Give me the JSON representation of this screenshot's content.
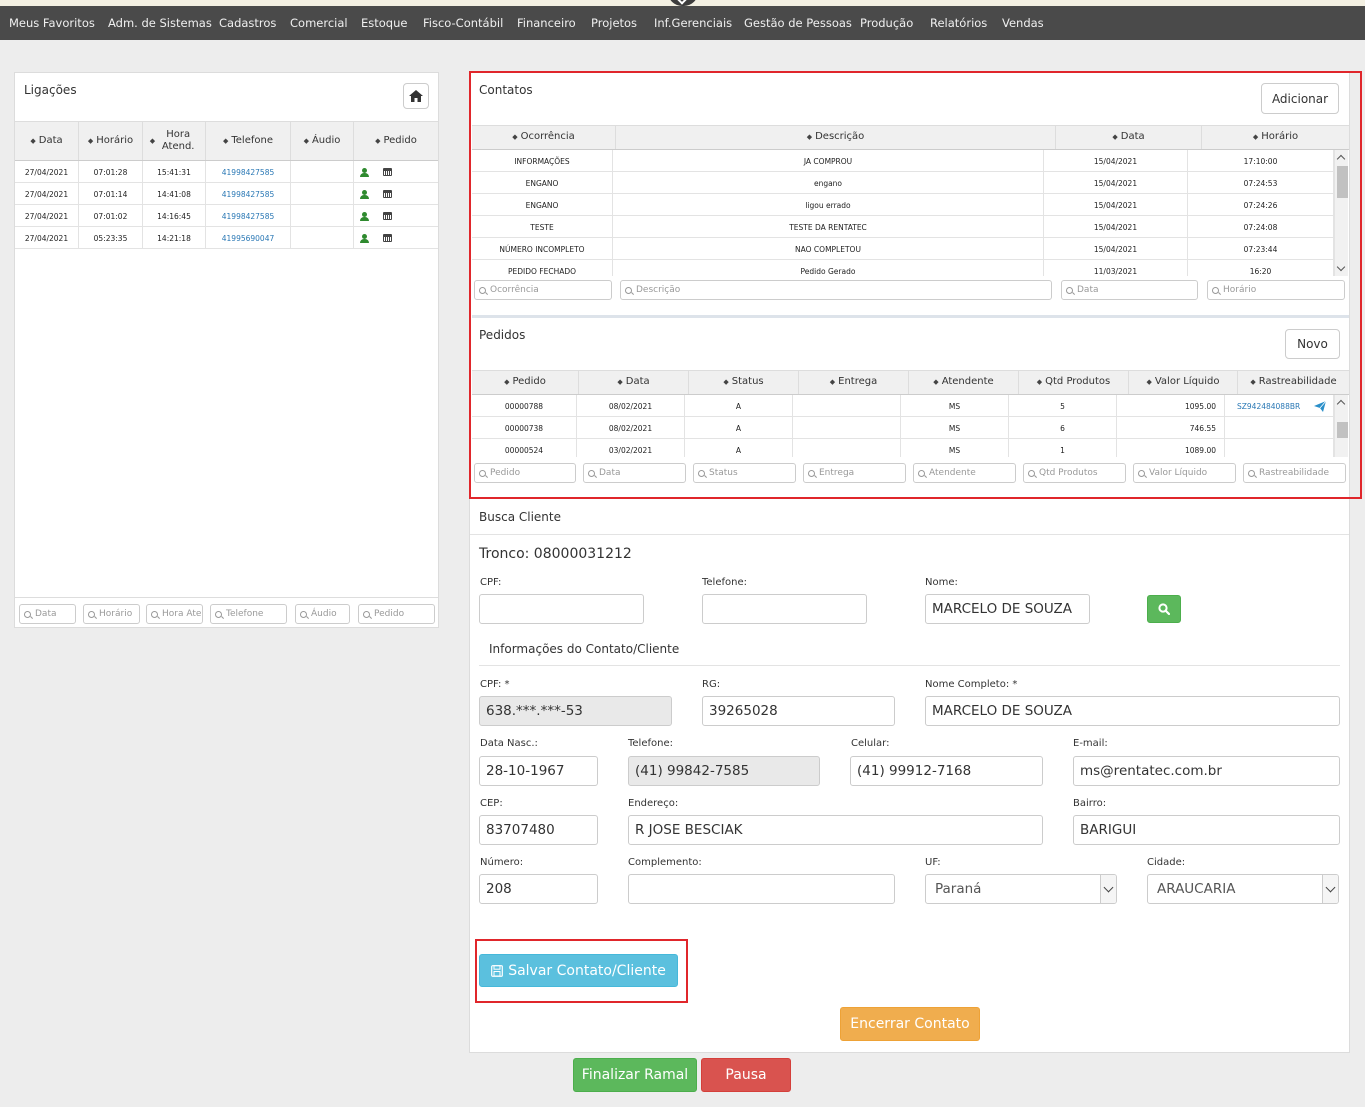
{
  "nav": [
    "Meus Favoritos",
    "Adm. de Sistemas",
    "Cadastros",
    "Comercial",
    "Estoque",
    "Fisco-Contábil",
    "Financeiro",
    "Projetos",
    "Inf.Gerenciais",
    "Gestão de Pessoas",
    "Produção",
    "Relatórios",
    "Vendas"
  ],
  "ligacoes": {
    "title": "Ligações",
    "columns": [
      "Data",
      "Horário",
      "Hora Atend.",
      "Telefone",
      "Áudio",
      "Pedido"
    ],
    "rows": [
      {
        "data": "27/04/2021",
        "horario": "07:01:28",
        "hora_atend": "15:41:31",
        "telefone": "41998427585"
      },
      {
        "data": "27/04/2021",
        "horario": "07:01:14",
        "hora_atend": "14:41:08",
        "telefone": "41998427585"
      },
      {
        "data": "27/04/2021",
        "horario": "07:01:02",
        "hora_atend": "14:16:45",
        "telefone": "41998427585"
      },
      {
        "data": "27/04/2021",
        "horario": "05:23:35",
        "hora_atend": "14:21:18",
        "telefone": "41995690047"
      }
    ],
    "filters": [
      "Data",
      "Horário",
      "Hora Atend",
      "Telefone",
      "Áudio",
      "Pedido"
    ]
  },
  "contatos": {
    "title": "Contatos",
    "add_label": "Adicionar",
    "columns": [
      "Ocorrência",
      "Descrição",
      "Data",
      "Horário"
    ],
    "rows": [
      {
        "ocorrencia": "INFORMAÇÕES",
        "descricao": "JA COMPROU",
        "data": "15/04/2021",
        "horario": "17:10:00"
      },
      {
        "ocorrencia": "ENGANO",
        "descricao": "engano",
        "data": "15/04/2021",
        "horario": "07:24:53"
      },
      {
        "ocorrencia": "ENGANO",
        "descricao": "ligou errado",
        "data": "15/04/2021",
        "horario": "07:24:26"
      },
      {
        "ocorrencia": "TESTE",
        "descricao": "TESTE DA RENTATEC",
        "data": "15/04/2021",
        "horario": "07:24:08"
      },
      {
        "ocorrencia": "NÚMERO INCOMPLETO",
        "descricao": "NAO COMPLETOU",
        "data": "15/04/2021",
        "horario": "07:23:44"
      },
      {
        "ocorrencia": "PEDIDO FECHADO",
        "descricao": "Pedido Gerado",
        "data": "11/03/2021",
        "horario": "16:20"
      }
    ],
    "filters": [
      "Ocorrência",
      "Descrição",
      "Data",
      "Horário"
    ]
  },
  "pedidos": {
    "title": "Pedidos",
    "new_label": "Novo",
    "columns": [
      "Pedido",
      "Data",
      "Status",
      "Entrega",
      "Atendente",
      "Qtd Produtos",
      "Valor Líquido",
      "Rastreabilidade"
    ],
    "rows": [
      {
        "pedido": "00000788",
        "data": "08/02/2021",
        "status": "A",
        "entrega": "",
        "atendente": "MS",
        "qtd": "5",
        "valor": "1095.00",
        "rastreio": "SZ942484088BR"
      },
      {
        "pedido": "00000738",
        "data": "08/02/2021",
        "status": "A",
        "entrega": "",
        "atendente": "MS",
        "qtd": "6",
        "valor": "746.55",
        "rastreio": ""
      },
      {
        "pedido": "00000524",
        "data": "03/02/2021",
        "status": "A",
        "entrega": "",
        "atendente": "MS",
        "qtd": "1",
        "valor": "1089.00",
        "rastreio": ""
      }
    ],
    "filters": [
      "Pedido",
      "Data",
      "Status",
      "Entrega",
      "Atendente",
      "Qtd Produtos",
      "Valor Líquido",
      "Rastreabilidade"
    ]
  },
  "busca": {
    "title": "Busca Cliente",
    "tronco": "Tronco: 08000031212",
    "cpf_label": "CPF:",
    "cpf_value": "",
    "telefone_label": "Telefone:",
    "telefone_value": "",
    "nome_label": "Nome:",
    "nome_value": "MARCELO DE SOUZA"
  },
  "info": {
    "title": "Informações do Contato/Cliente",
    "cpf_label": "CPF: *",
    "cpf_value": "638.***.***-53",
    "rg_label": "RG:",
    "rg_value": "39265028",
    "nome_label": "Nome Completo: *",
    "nome_value": "MARCELO DE SOUZA",
    "nasc_label": "Data Nasc.:",
    "nasc_value": "28-10-1967",
    "tel_label": "Telefone:",
    "tel_value": "(41) 99842-7585",
    "cel_label": "Celular:",
    "cel_value": "(41) 99912-7168",
    "email_label": "E-mail:",
    "email_value": "ms@rentatec.com.br",
    "cep_label": "CEP:",
    "cep_value": "83707480",
    "end_label": "Endereço:",
    "end_value": "R JOSE BESCIAK",
    "bairro_label": "Bairro:",
    "bairro_value": "BARIGUI",
    "num_label": "Número:",
    "num_value": "208",
    "comp_label": "Complemento:",
    "comp_value": "",
    "uf_label": "UF:",
    "uf_value": "Paraná",
    "cidade_label": "Cidade:",
    "cidade_value": "ARAUCARIA"
  },
  "buttons": {
    "salvar": "Salvar Contato/Cliente",
    "encerrar": "Encerrar Contato",
    "finalizar": "Finalizar Ramal",
    "pausa": "Pausa"
  },
  "colors": {
    "nav_bg": "#4a4a4a",
    "save": "#5bc0de",
    "warning": "#f0ad4e",
    "success": "#5cb85c",
    "danger": "#d9534f",
    "highlight": "#e0262b"
  }
}
